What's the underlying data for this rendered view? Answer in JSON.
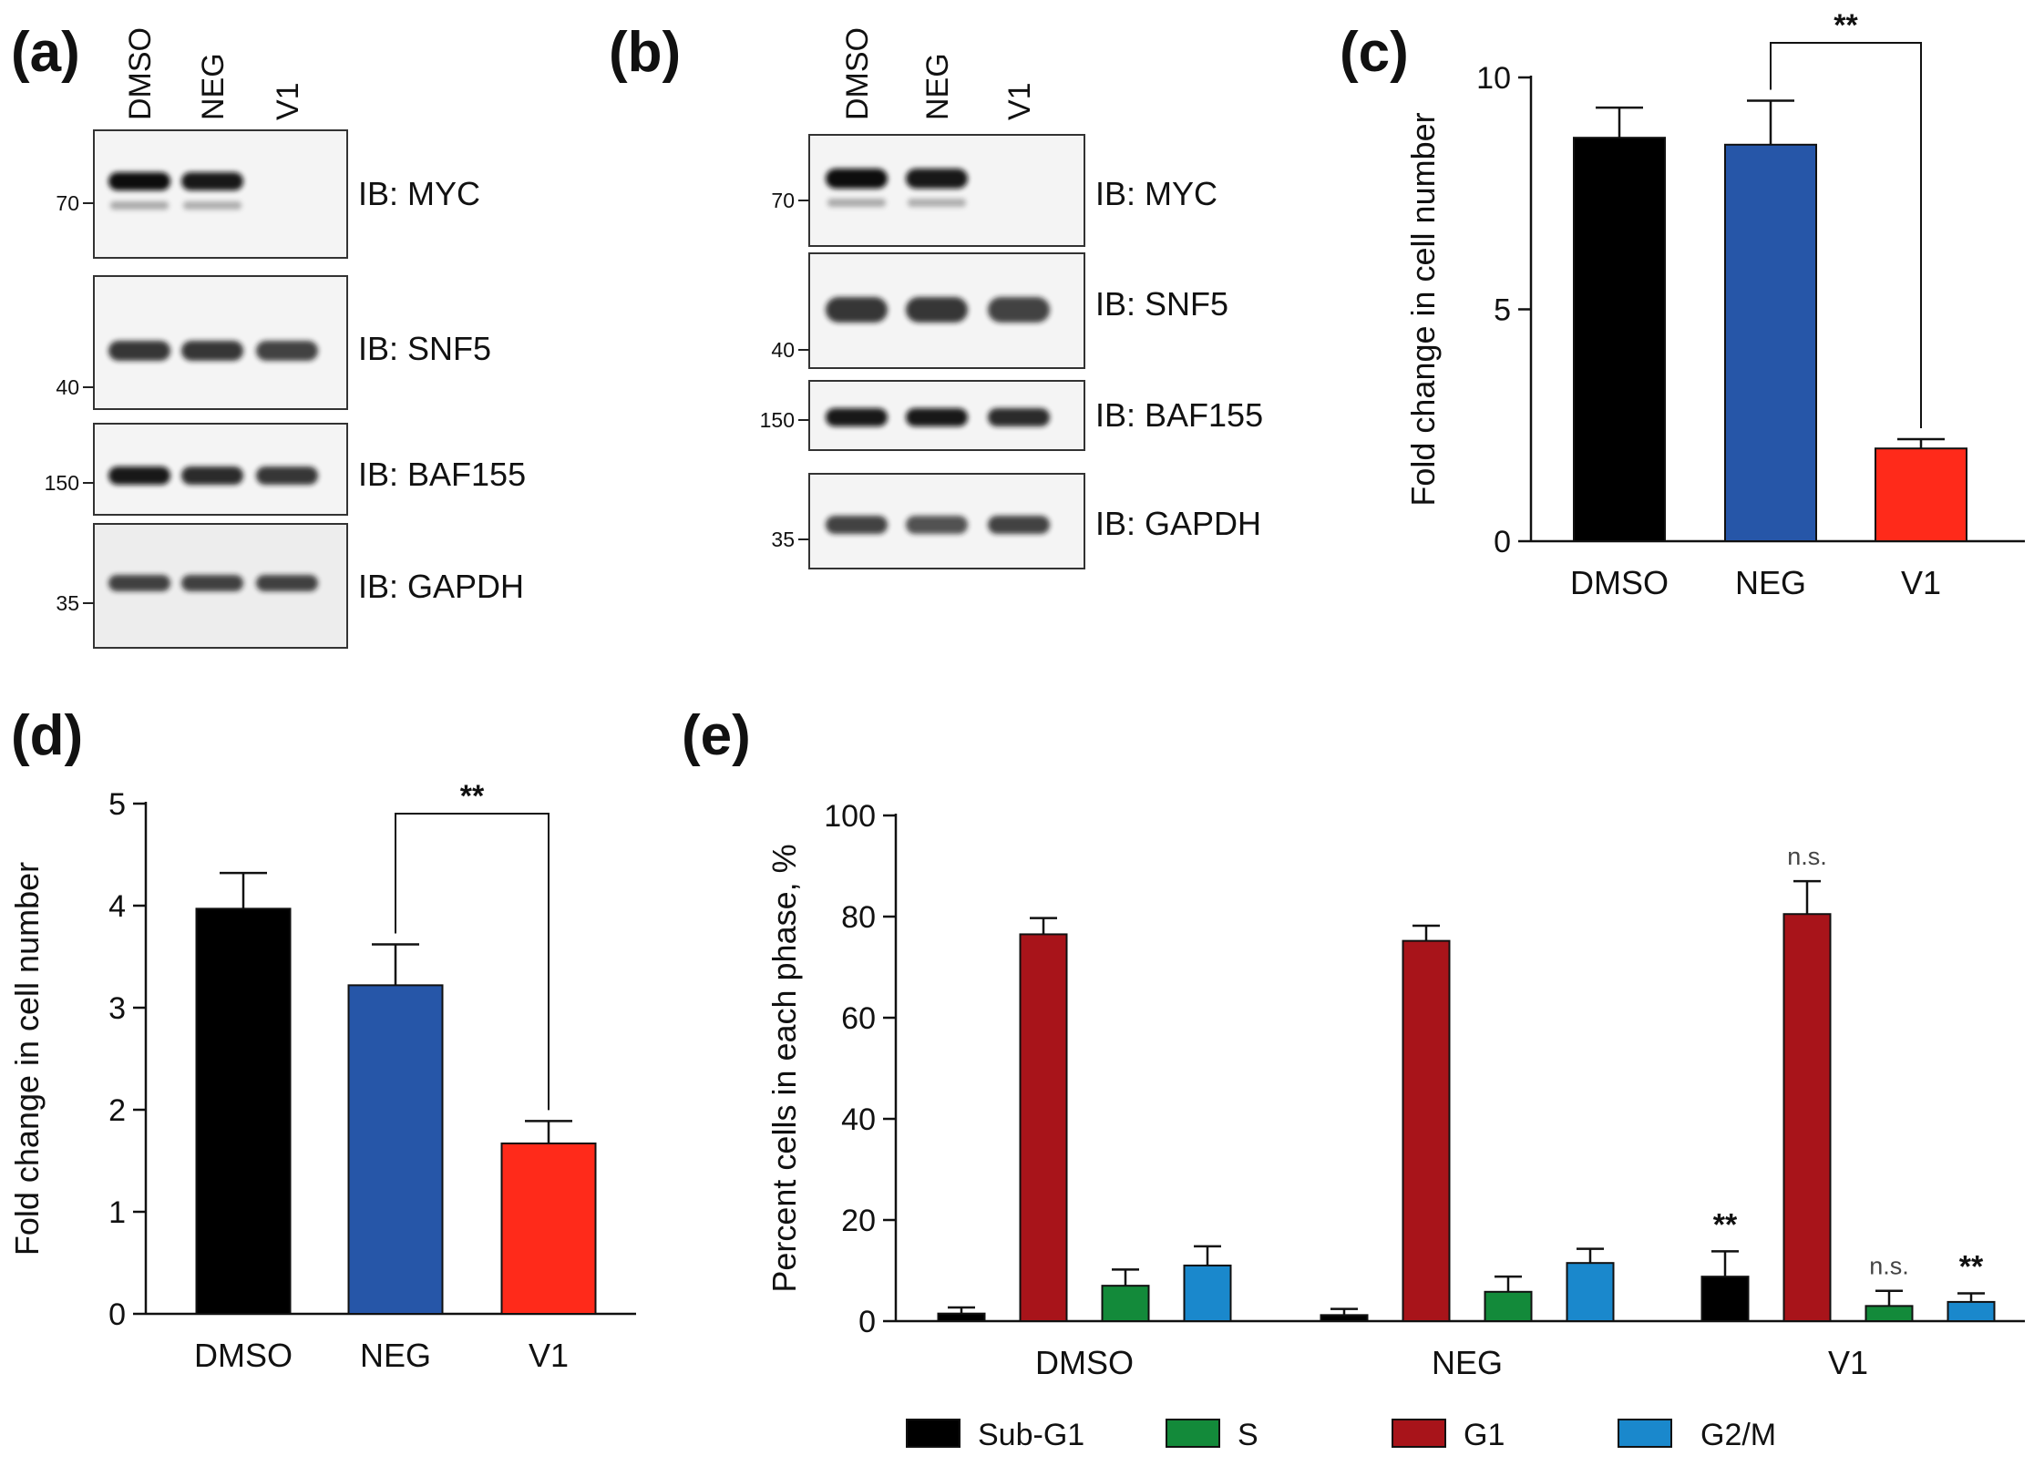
{
  "panels": {
    "a": {
      "label": "(a)",
      "lanes": [
        "DMSO",
        "NEG",
        "V1"
      ],
      "blots": [
        {
          "ib": "IB: MYC",
          "mw": "70",
          "intensity": [
            1.0,
            0.95,
            0.02
          ]
        },
        {
          "ib": "IB: SNF5",
          "mw": "40",
          "intensity": [
            0.85,
            0.85,
            0.8
          ]
        },
        {
          "ib": "IB: BAF155",
          "mw": "150",
          "intensity": [
            0.95,
            0.9,
            0.85
          ]
        },
        {
          "ib": "IB: GAPDH",
          "mw": "35",
          "intensity": [
            0.8,
            0.8,
            0.8
          ]
        }
      ]
    },
    "b": {
      "label": "(b)",
      "lanes": [
        "DMSO",
        "NEG",
        "V1"
      ],
      "blots": [
        {
          "ib": "IB: MYC",
          "mw": "70",
          "intensity": [
            1.0,
            0.95,
            0.0
          ]
        },
        {
          "ib": "IB: SNF5",
          "mw": "40",
          "intensity": [
            0.85,
            0.85,
            0.8
          ]
        },
        {
          "ib": "IB: BAF155",
          "mw": "150",
          "intensity": [
            0.95,
            0.95,
            0.9
          ]
        },
        {
          "ib": "IB: GAPDH",
          "mw": "35",
          "intensity": [
            0.8,
            0.75,
            0.8
          ]
        }
      ]
    },
    "c": {
      "label": "(c)"
    },
    "d": {
      "label": "(d)"
    },
    "e": {
      "label": "(e)"
    }
  },
  "chart_data": [
    {
      "id": "c",
      "type": "bar",
      "categories": [
        "DMSO",
        "NEG",
        "V1"
      ],
      "values": [
        8.7,
        8.55,
        2.0
      ],
      "errors": [
        0.65,
        0.95,
        0.2
      ],
      "colors": [
        "#000000",
        "#2656a8",
        "#ff2a1a"
      ],
      "ylabel": "Fold change in cell number",
      "ylim": [
        0,
        10
      ],
      "yticks": [
        0,
        5,
        10
      ],
      "significance": [
        {
          "from": 1,
          "to": 2,
          "text": "**"
        }
      ]
    },
    {
      "id": "d",
      "type": "bar",
      "categories": [
        "DMSO",
        "NEG",
        "V1"
      ],
      "values": [
        3.97,
        3.22,
        1.67
      ],
      "errors": [
        0.35,
        0.4,
        0.22
      ],
      "colors": [
        "#000000",
        "#2656a8",
        "#ff2a1a"
      ],
      "ylabel": "Fold change in cell number",
      "ylim": [
        0,
        5
      ],
      "yticks": [
        0,
        1,
        2,
        3,
        4,
        5
      ],
      "significance": [
        {
          "from": 1,
          "to": 2,
          "text": "**"
        }
      ]
    },
    {
      "id": "e",
      "type": "bar",
      "categories": [
        "DMSO",
        "NEG",
        "V1"
      ],
      "series": [
        {
          "name": "Sub-G1",
          "color": "#000000",
          "values": [
            1.5,
            1.2,
            8.8
          ],
          "errors": [
            1.2,
            1.2,
            5.0
          ],
          "marks": [
            "",
            "",
            "**"
          ]
        },
        {
          "name": "G1",
          "color": "#a8141a",
          "values": [
            76.5,
            75.2,
            80.5
          ],
          "errors": [
            3.2,
            3.0,
            6.5
          ],
          "marks": [
            "",
            "",
            "n.s."
          ]
        },
        {
          "name": "S",
          "color": "#138a3a",
          "values": [
            7.0,
            5.8,
            3.0
          ],
          "errors": [
            3.2,
            3.0,
            3.0
          ],
          "marks": [
            "",
            "",
            "n.s."
          ]
        },
        {
          "name": "G2/M",
          "color": "#1a88cc",
          "values": [
            11.0,
            11.5,
            3.8
          ],
          "errors": [
            3.8,
            2.8,
            1.7
          ],
          "marks": [
            "",
            "",
            "**"
          ]
        }
      ],
      "ylabel": "Percent cells in each phase, %",
      "ylim": [
        0,
        100
      ],
      "yticks": [
        0,
        20,
        40,
        60,
        80,
        100
      ],
      "legend_order": [
        "Sub-G1",
        "S",
        "G1",
        "G2/M"
      ],
      "legend_position": "bottom"
    }
  ]
}
